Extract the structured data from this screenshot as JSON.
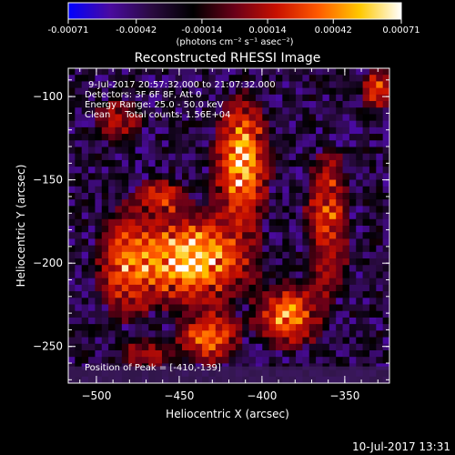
{
  "chart_data": {
    "type": "heatmap",
    "title": "Reconstructed RHESSI Image",
    "xlabel": "Heliocentric X (arcsec)",
    "ylabel": "Heliocentric Y (arcsec)",
    "xlim": [
      -517,
      -323
    ],
    "ylim": [
      -272,
      -83
    ],
    "x_ticks": [
      -500,
      -450,
      -400,
      -350
    ],
    "y_ticks": [
      -100,
      -150,
      -200,
      -250
    ],
    "colorbar": {
      "range": [
        -0.00071,
        0.00071
      ],
      "ticks": [
        "-0.00071",
        "-0.00042",
        "-0.00014",
        "0.00014",
        "0.00042",
        "0.00071"
      ],
      "unit": "(photons cm⁻² s⁻¹ asec⁻²)",
      "colormap": [
        "#0000ff",
        "#4a0aa0",
        "#2a0a40",
        "#000000",
        "#6a0018",
        "#c81000",
        "#ff5a00",
        "#ffc800",
        "#ffffff"
      ]
    },
    "annotations": [
      "9-Jul-2017 20:57:32.000 to 21:07:32.000",
      "Detectors: 3F 6F 8F, Att 0",
      "Energy Range: 25.0 - 50.0 keV",
      "Clean     Total counts: 1.56E+04",
      "Position of Peak = [-410,-139]"
    ],
    "peak": [
      -410,
      -139
    ],
    "hot_regions": [
      {
        "x": -443,
        "y": -198,
        "sx": 30,
        "sy": 22,
        "w": 1.0
      },
      {
        "x": -412,
        "y": -140,
        "sx": 14,
        "sy": 34,
        "w": 0.9
      },
      {
        "x": -482,
        "y": -200,
        "sx": 16,
        "sy": 30,
        "w": 0.55
      },
      {
        "x": -384,
        "y": -232,
        "sx": 16,
        "sy": 16,
        "w": 0.8
      },
      {
        "x": -432,
        "y": -245,
        "sx": 16,
        "sy": 14,
        "w": 0.7
      },
      {
        "x": -360,
        "y": -175,
        "sx": 12,
        "sy": 40,
        "w": 0.55
      },
      {
        "x": -487,
        "y": -115,
        "sx": 14,
        "sy": 14,
        "w": 0.4
      },
      {
        "x": -460,
        "y": -160,
        "sx": 14,
        "sy": 10,
        "w": 0.45
      },
      {
        "x": -470,
        "y": -255,
        "sx": 14,
        "sy": 10,
        "w": 0.35
      },
      {
        "x": -330,
        "y": -95,
        "sx": 10,
        "sy": 12,
        "w": 0.5
      }
    ]
  },
  "footer": {
    "timestamp": "10-Jul-2017 13:31"
  }
}
